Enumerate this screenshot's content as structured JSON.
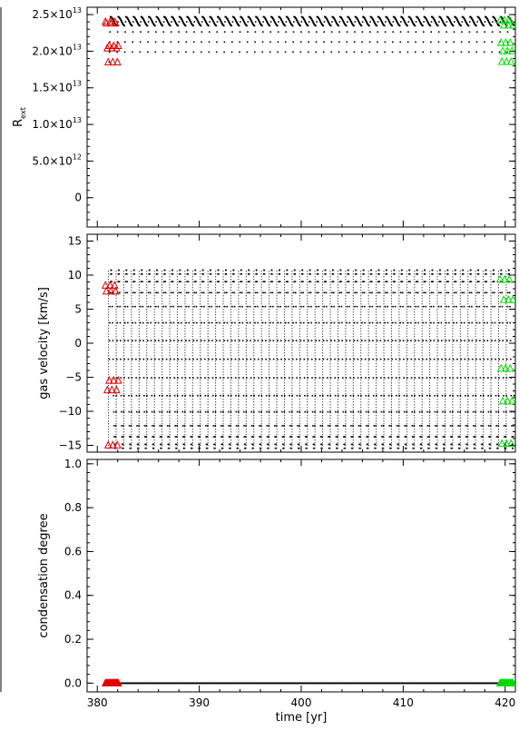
{
  "chart_data": [
    {
      "type": "scatter",
      "title": "",
      "xlabel": "",
      "ylabel": "R",
      "ylabel_sub": "ext",
      "xlim": [
        379,
        421
      ],
      "ylim": [
        -0.4,
        2.6
      ],
      "y_multiplier_note": "values in units of 1e13",
      "yticks": [
        0,
        0.5,
        1.0,
        1.5,
        2.0,
        2.5
      ],
      "ytick_labels": [
        "0",
        "5.0×10",
        "1.0×10",
        "1.5×10",
        "2.0×10",
        "2.5×10"
      ],
      "ytick_exponents": [
        "",
        "12",
        "13",
        "13",
        "13",
        "13"
      ],
      "xticks": [
        380,
        390,
        400,
        410,
        420
      ],
      "xtick_labels": [
        "",
        "",
        "",
        "",
        ""
      ],
      "grid": false,
      "series": [
        {
          "color": "#000000",
          "marker": "dot",
          "x_start": 381.1,
          "x_end": 420.8,
          "period": 0.75,
          "y_min": 1.85,
          "y_max": 2.47
        },
        {
          "color": "#e00000",
          "marker": "triangle",
          "x_start": 380.8,
          "x_end": 382.1,
          "period": 0.45,
          "y_min": 1.85,
          "y_max": 2.45
        },
        {
          "color": "#00dd00",
          "marker": "triangle",
          "x_start": 419.5,
          "x_end": 420.8,
          "period": 0.45,
          "y_min": 1.85,
          "y_max": 2.45
        }
      ]
    },
    {
      "type": "scatter",
      "title": "",
      "xlabel": "",
      "ylabel": "gas velocity [km/s]",
      "xlim": [
        379,
        421
      ],
      "ylim": [
        -16,
        16
      ],
      "yticks": [
        -15,
        -10,
        -5,
        0,
        5,
        10,
        15
      ],
      "ytick_labels": [
        "−15",
        "−10",
        "−5",
        "0",
        "5",
        "10",
        "15"
      ],
      "xticks": [
        380,
        390,
        400,
        410,
        420
      ],
      "xtick_labels": [
        "",
        "",
        "",
        "",
        ""
      ],
      "grid": false,
      "series": [
        {
          "color": "#000000",
          "marker": "dot",
          "x_start": 381.1,
          "x_end": 420.8,
          "period": 0.75,
          "y_min": -15.5,
          "y_max": 10.8
        },
        {
          "color": "#e00000",
          "marker": "triangle",
          "x_start": 380.8,
          "x_end": 382.1,
          "period": 0.45,
          "y_min": -15,
          "y_max": 10.5
        },
        {
          "color": "#00dd00",
          "marker": "triangle",
          "x_start": 419.5,
          "x_end": 420.8,
          "period": 0.45,
          "y_min": -15,
          "y_max": 10.5
        }
      ]
    },
    {
      "type": "scatter",
      "title": "",
      "xlabel": "time [yr]",
      "ylabel": "condensation degree",
      "xlim": [
        379,
        421
      ],
      "ylim": [
        -0.04,
        1.02
      ],
      "yticks": [
        0,
        0.2,
        0.4,
        0.6,
        0.8,
        1.0
      ],
      "ytick_labels": [
        "0.0",
        "0.2",
        "0.4",
        "0.6",
        "0.8",
        "1.0"
      ],
      "xticks": [
        380,
        390,
        400,
        410,
        420
      ],
      "xtick_labels": [
        "380",
        "390",
        "400",
        "410",
        "420"
      ],
      "grid": false,
      "series": [
        {
          "color": "#000000",
          "marker": "dot",
          "x_start": 381.1,
          "x_end": 420.8,
          "period": 0.75,
          "y_min": 0,
          "y_max": 0
        },
        {
          "color": "#e00000",
          "marker": "triangle",
          "x_start": 380.8,
          "x_end": 382.1,
          "period": 0.45,
          "y_min": 0,
          "y_max": 0
        },
        {
          "color": "#00dd00",
          "marker": "triangle",
          "x_start": 419.5,
          "x_end": 420.8,
          "period": 0.45,
          "y_min": 0,
          "y_max": 0
        }
      ]
    }
  ]
}
